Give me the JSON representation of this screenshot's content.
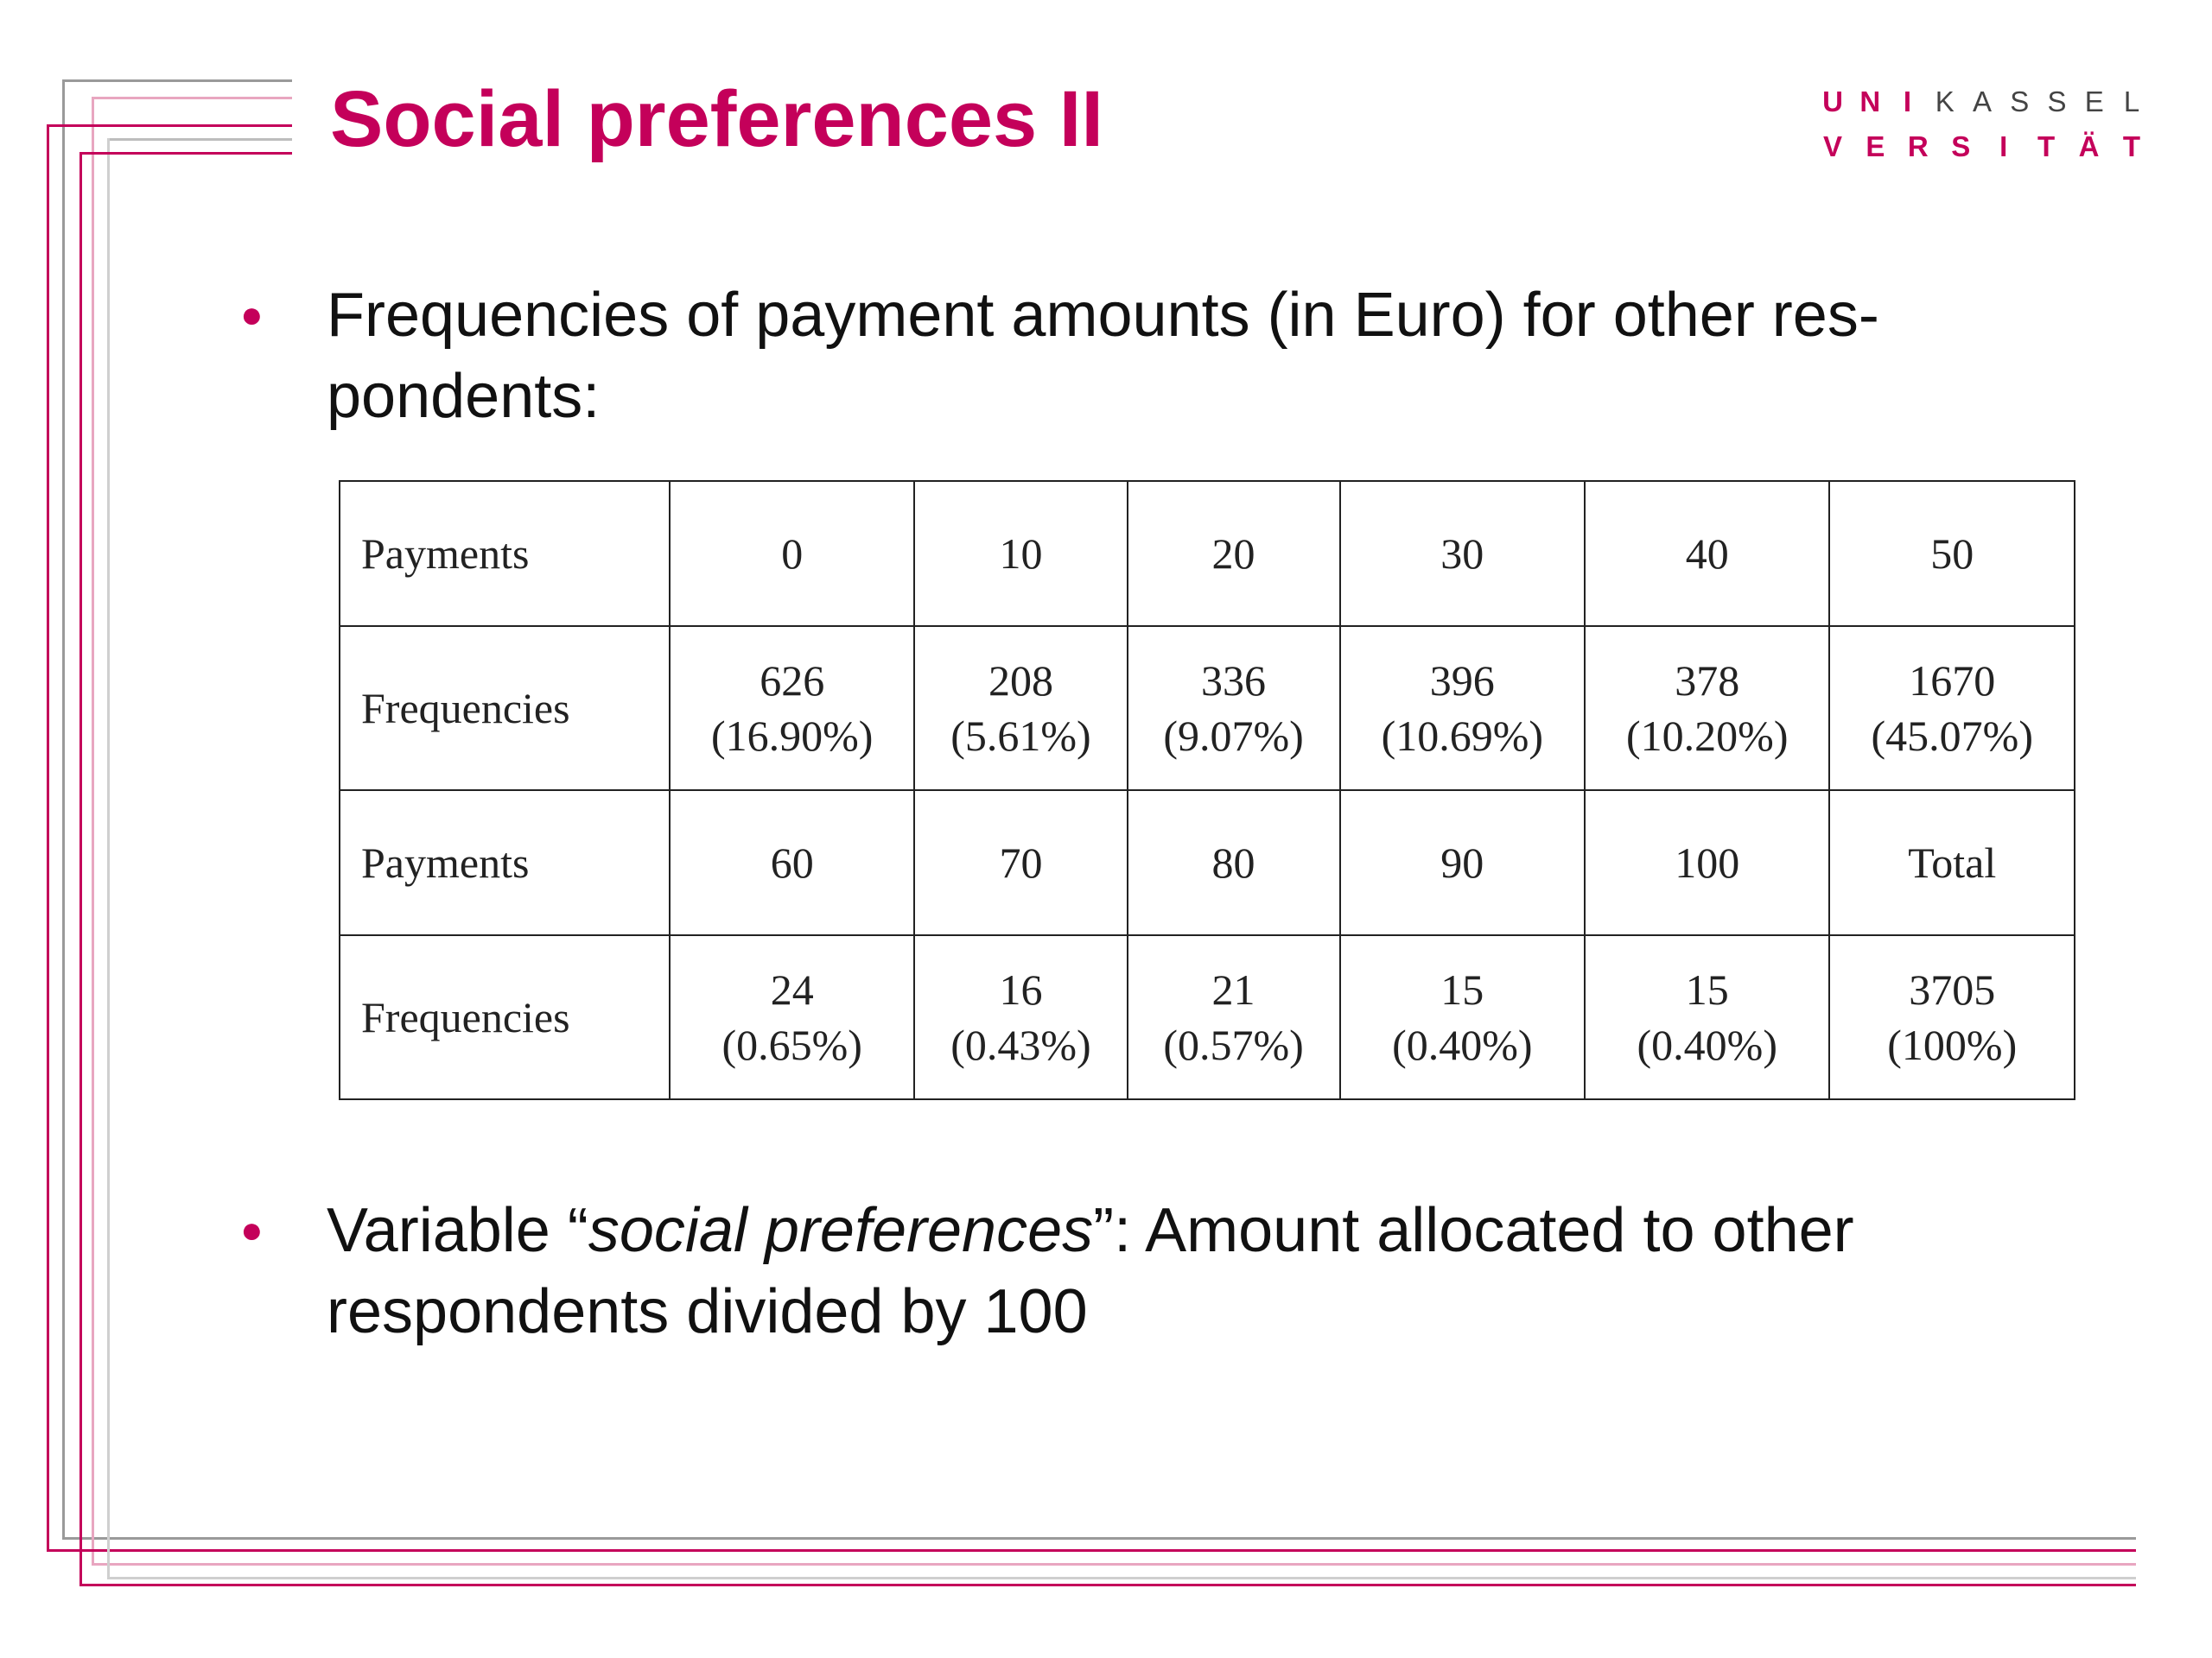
{
  "slide": {
    "title": "Social preferences II",
    "logo": {
      "line1": [
        "U",
        "N",
        "I",
        "K",
        "A",
        "S",
        "S",
        "E",
        "L"
      ],
      "line2": [
        "V",
        "E",
        "R",
        "S",
        "I",
        "T",
        "Ä",
        "T"
      ]
    },
    "bullets": [
      {
        "text": "Frequencies of payment amounts (in Euro) for other res-pondents:"
      },
      {
        "pre": "Variable “",
        "emph": "social preferences",
        "post": "”: Amount allocated to other respondents divided by 100"
      }
    ]
  },
  "table": {
    "row_labels": {
      "payments": "Payments",
      "frequencies": "Frequencies"
    },
    "block1": {
      "payments": [
        "0",
        "10",
        "20",
        "30",
        "40",
        "50"
      ],
      "counts": [
        "626",
        "208",
        "336",
        "396",
        "378",
        "1670"
      ],
      "percents": [
        "(16.90%)",
        "(5.61%)",
        "(9.07%)",
        "(10.69%)",
        "(10.20%)",
        "(45.07%)"
      ]
    },
    "block2": {
      "payments": [
        "60",
        "70",
        "80",
        "90",
        "100",
        "Total"
      ],
      "counts": [
        "24",
        "16",
        "21",
        "15",
        "15",
        "3705"
      ],
      "percents": [
        "(0.65%)",
        "(0.43%)",
        "(0.57%)",
        "(0.40%)",
        "(0.40%)",
        "(100%)"
      ]
    }
  },
  "colors": {
    "accent": "#c4005a",
    "frame_gray": "#9a9a9a",
    "frame_pink": "#e8a6c0",
    "frame_light_gray": "#cfcfcf"
  }
}
